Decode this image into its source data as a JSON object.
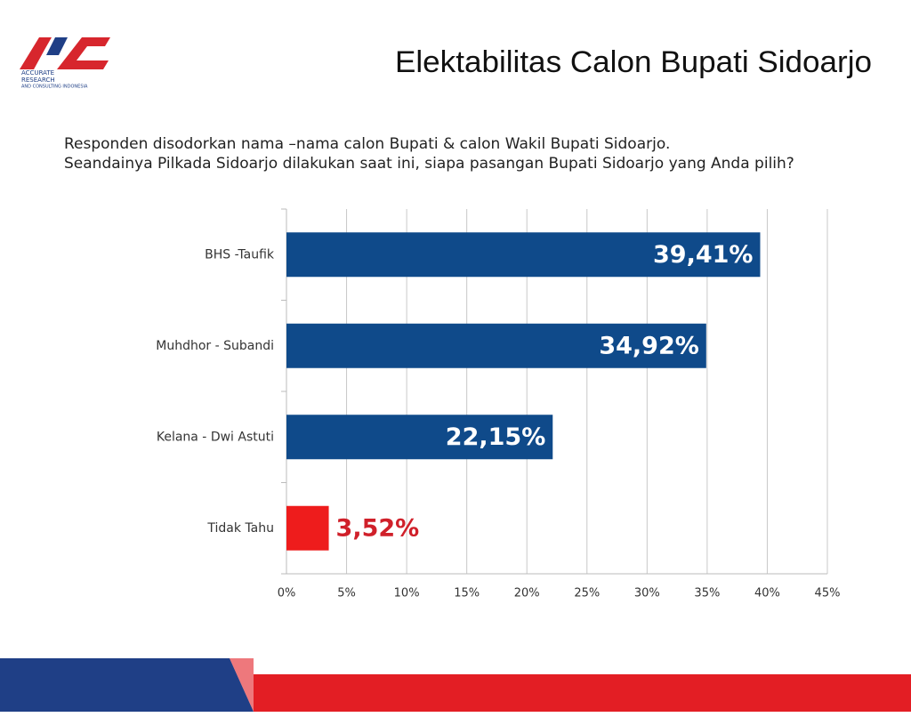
{
  "logo": [
    "ACCURATE",
    "RESEARCH",
    "AND CONSULTING INDONESIA"
  ],
  "chart_data": {
    "type": "bar",
    "orientation": "horizontal",
    "title": "Elektabilitas Calon Bupati Sidoarjo",
    "subtitle": [
      "Responden disodorkan nama –nama calon Bupati & calon Wakil Bupati Sidoarjo.",
      "Seandainya Pilkada Sidoarjo dilakukan saat ini, siapa pasangan Bupati Sidoarjo yang Anda pilih?"
    ],
    "categories": [
      "BHS -Taufik",
      "Muhdhor - Subandi",
      "Kelana - Dwi Astuti",
      "Tidak Tahu"
    ],
    "values": [
      39.41,
      34.92,
      22.15,
      3.52
    ],
    "value_labels": [
      "39,41%",
      "34,92%",
      "22,15%",
      "3,52%"
    ],
    "colors": [
      "#0f4a8a",
      "#0f4a8a",
      "#0f4a8a",
      "#ee1c1c"
    ],
    "xlim": [
      0,
      45
    ],
    "xticks": [
      {
        "value": 0,
        "label": "0%"
      },
      {
        "value": 5,
        "label": "5%"
      },
      {
        "value": 10,
        "label": "10%"
      },
      {
        "value": 15,
        "label": "15%"
      },
      {
        "value": 20,
        "label": "20%"
      },
      {
        "value": 25,
        "label": "25%"
      },
      {
        "value": 30,
        "label": "30%"
      },
      {
        "value": 35,
        "label": "35%"
      },
      {
        "value": 40,
        "label": "40%"
      },
      {
        "value": 45,
        "label": "45%"
      }
    ],
    "grid": true
  }
}
